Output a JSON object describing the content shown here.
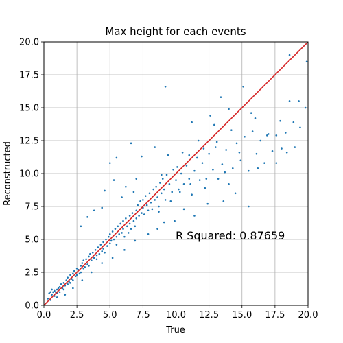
{
  "chart_data": {
    "type": "scatter",
    "title": "Max height for each events",
    "xlabel": "True",
    "ylabel": "Reconstructed",
    "xlim": [
      0,
      20
    ],
    "ylim": [
      0,
      20
    ],
    "xticks": [
      "0.0",
      "2.5",
      "5.0",
      "7.5",
      "10.0",
      "12.5",
      "15.0",
      "17.5",
      "20.0"
    ],
    "yticks": [
      "0.0",
      "2.5",
      "5.0",
      "7.5",
      "10.0",
      "12.5",
      "15.0",
      "17.5",
      "20.0"
    ],
    "grid": true,
    "annotation": "R Squared: 0.87659",
    "colors": {
      "points": "#1f77b4",
      "identity_line": "#d62728",
      "grid": "#b0b0b0"
    },
    "identity_line": {
      "x": [
        0,
        20
      ],
      "y": [
        0,
        20
      ]
    },
    "series": [
      {
        "type": "scatter",
        "points": [
          [
            0.3,
            0.5
          ],
          [
            0.4,
            0.9
          ],
          [
            0.5,
            1.0
          ],
          [
            0.6,
            0.8
          ],
          [
            0.6,
            1.2
          ],
          [
            0.7,
            1.0
          ],
          [
            0.8,
            1.1
          ],
          [
            0.8,
            0.7
          ],
          [
            0.9,
            1.0
          ],
          [
            1.0,
            1.2
          ],
          [
            1.0,
            0.9
          ],
          [
            1.1,
            1.3
          ],
          [
            1.2,
            1.4
          ],
          [
            1.2,
            1.0
          ],
          [
            1.3,
            1.6
          ],
          [
            1.4,
            1.3
          ],
          [
            1.5,
            1.7
          ],
          [
            1.5,
            1.2
          ],
          [
            1.6,
            1.5
          ],
          [
            1.7,
            1.9
          ],
          [
            1.8,
            1.6
          ],
          [
            1.8,
            2.1
          ],
          [
            1.9,
            1.8
          ],
          [
            2.0,
            2.3
          ],
          [
            2.0,
            1.7
          ],
          [
            2.1,
            2.0
          ],
          [
            2.2,
            2.4
          ],
          [
            2.2,
            1.9
          ],
          [
            2.3,
            2.6
          ],
          [
            2.4,
            2.2
          ],
          [
            2.5,
            2.8
          ],
          [
            2.5,
            2.3
          ],
          [
            2.6,
            2.7
          ],
          [
            2.7,
            2.4
          ],
          [
            2.8,
            3.0
          ],
          [
            2.8,
            2.5
          ],
          [
            2.9,
            3.2
          ],
          [
            3.0,
            2.8
          ],
          [
            3.0,
            3.4
          ],
          [
            3.1,
            2.9
          ],
          [
            3.2,
            3.5
          ],
          [
            3.3,
            3.1
          ],
          [
            3.4,
            3.7
          ],
          [
            3.4,
            3.0
          ],
          [
            3.5,
            3.9
          ],
          [
            3.6,
            3.4
          ],
          [
            3.7,
            4.0
          ],
          [
            3.8,
            3.6
          ],
          [
            3.9,
            4.2
          ],
          [
            4.0,
            3.8
          ],
          [
            4.0,
            3.5
          ],
          [
            4.1,
            4.4
          ],
          [
            4.2,
            3.9
          ],
          [
            4.3,
            4.6
          ],
          [
            4.4,
            4.1
          ],
          [
            4.5,
            4.8
          ],
          [
            4.5,
            4.3
          ],
          [
            4.6,
            4.0
          ],
          [
            4.7,
            5.0
          ],
          [
            4.8,
            4.5
          ],
          [
            4.9,
            5.2
          ],
          [
            5.0,
            4.7
          ],
          [
            5.0,
            5.4
          ],
          [
            5.1,
            4.9
          ],
          [
            5.2,
            5.6
          ],
          [
            5.3,
            5.0
          ],
          [
            5.4,
            5.8
          ],
          [
            5.5,
            5.2
          ],
          [
            5.5,
            4.6
          ],
          [
            5.6,
            6.0
          ],
          [
            5.7,
            5.4
          ],
          [
            5.8,
            6.2
          ],
          [
            5.9,
            5.5
          ],
          [
            6.0,
            6.4
          ],
          [
            6.0,
            5.8
          ],
          [
            6.1,
            5.2
          ],
          [
            6.2,
            6.6
          ],
          [
            6.3,
            6.0
          ],
          [
            6.4,
            5.5
          ],
          [
            6.5,
            6.8
          ],
          [
            6.5,
            6.2
          ],
          [
            6.6,
            5.8
          ],
          [
            6.7,
            7.0
          ],
          [
            6.8,
            6.4
          ],
          [
            6.9,
            6.0
          ],
          [
            7.0,
            7.2
          ],
          [
            7.0,
            6.6
          ],
          [
            7.1,
            7.6
          ],
          [
            7.2,
            6.8
          ],
          [
            7.3,
            7.9
          ],
          [
            7.4,
            7.0
          ],
          [
            7.5,
            8.0
          ],
          [
            7.5,
            7.4
          ],
          [
            7.6,
            6.9
          ],
          [
            7.7,
            8.3
          ],
          [
            7.8,
            7.6
          ],
          [
            7.9,
            7.2
          ],
          [
            8.0,
            8.5
          ],
          [
            8.1,
            7.8
          ],
          [
            8.2,
            7.3
          ],
          [
            8.3,
            8.8
          ],
          [
            8.4,
            8.0
          ],
          [
            8.5,
            9.0
          ],
          [
            8.6,
            8.2
          ],
          [
            8.7,
            7.5
          ],
          [
            8.8,
            9.3
          ],
          [
            8.9,
            8.5
          ],
          [
            9.0,
            9.6
          ],
          [
            9.1,
            8.8
          ],
          [
            9.2,
            8.0
          ],
          [
            9.3,
            9.9
          ],
          [
            9.5,
            9.2
          ],
          [
            9.7,
            8.6
          ],
          [
            9.8,
            10.3
          ],
          [
            10.0,
            9.5
          ],
          [
            10.2,
            8.8
          ],
          [
            10.4,
            10.0
          ],
          [
            10.6,
            9.2
          ],
          [
            10.8,
            10.6
          ],
          [
            11.0,
            9.6
          ],
          [
            11.2,
            8.4
          ],
          [
            11.4,
            10.2
          ],
          [
            11.6,
            11.2
          ],
          [
            11.8,
            9.5
          ],
          [
            12.0,
            10.8
          ],
          [
            12.2,
            8.9
          ],
          [
            12.5,
            11.5
          ],
          [
            12.8,
            10.3
          ],
          [
            13.0,
            12.0
          ],
          [
            13.2,
            9.6
          ],
          [
            13.5,
            10.7
          ],
          [
            13.8,
            11.8
          ],
          [
            14.0,
            9.2
          ],
          [
            14.3,
            10.4
          ],
          [
            14.6,
            12.3
          ],
          [
            14.9,
            11.0
          ],
          [
            15.2,
            12.8
          ],
          [
            15.5,
            10.2
          ],
          [
            15.8,
            13.2
          ],
          [
            16.1,
            11.5
          ],
          [
            16.4,
            12.5
          ],
          [
            16.7,
            10.8
          ],
          [
            17.0,
            13.0
          ],
          [
            17.3,
            11.7
          ],
          [
            17.6,
            12.9
          ],
          [
            18.0,
            11.9
          ],
          [
            18.3,
            13.1
          ],
          [
            18.6,
            15.5
          ],
          [
            19.0,
            12.0
          ],
          [
            19.4,
            13.5
          ],
          [
            19.8,
            15.0
          ],
          [
            19.9,
            18.5
          ],
          [
            18.6,
            19.0
          ],
          [
            9.2,
            16.6
          ],
          [
            13.4,
            15.8
          ],
          [
            15.1,
            16.6
          ],
          [
            12.6,
            14.4
          ],
          [
            11.2,
            13.9
          ],
          [
            14.0,
            14.9
          ],
          [
            16.0,
            14.2
          ],
          [
            5.0,
            10.8
          ],
          [
            5.5,
            11.2
          ],
          [
            6.6,
            12.3
          ],
          [
            8.4,
            12.0
          ],
          [
            9.4,
            11.4
          ],
          [
            7.4,
            11.3
          ],
          [
            4.6,
            8.7
          ],
          [
            5.3,
            9.5
          ],
          [
            6.2,
            9.0
          ],
          [
            7.0,
            9.6
          ],
          [
            3.3,
            6.7
          ],
          [
            3.8,
            7.2
          ],
          [
            2.8,
            6.0
          ],
          [
            4.4,
            7.4
          ],
          [
            5.9,
            8.2
          ],
          [
            6.8,
            8.6
          ],
          [
            8.9,
            9.9
          ],
          [
            10.5,
            11.6
          ],
          [
            11.7,
            12.5
          ],
          [
            12.9,
            13.7
          ],
          [
            9.9,
            6.4
          ],
          [
            10.6,
            7.3
          ],
          [
            11.4,
            6.8
          ],
          [
            12.4,
            7.7
          ],
          [
            13.6,
            7.9
          ],
          [
            14.5,
            8.5
          ],
          [
            15.5,
            7.5
          ],
          [
            8.6,
            5.8
          ],
          [
            9.1,
            6.3
          ],
          [
            7.9,
            5.4
          ],
          [
            6.9,
            4.9
          ],
          [
            6.1,
            4.2
          ],
          [
            5.2,
            3.6
          ],
          [
            4.4,
            3.2
          ],
          [
            3.6,
            2.5
          ],
          [
            2.9,
            1.9
          ],
          [
            2.2,
            1.3
          ],
          [
            1.6,
            0.8
          ],
          [
            1.0,
            0.6
          ],
          [
            0.5,
            0.4
          ],
          [
            17.9,
            14.0
          ],
          [
            18.9,
            13.9
          ],
          [
            19.3,
            15.5
          ],
          [
            16.9,
            12.9
          ],
          [
            15.7,
            14.6
          ],
          [
            14.2,
            13.3
          ],
          [
            13.1,
            12.4
          ],
          [
            12.1,
            11.9
          ],
          [
            11.0,
            11.4
          ],
          [
            10.1,
            10.5
          ],
          [
            16.2,
            10.4
          ],
          [
            17.6,
            10.8
          ],
          [
            18.4,
            11.6
          ],
          [
            14.8,
            11.6
          ],
          [
            13.7,
            10.1
          ],
          [
            12.3,
            9.6
          ],
          [
            11.1,
            9.2
          ],
          [
            10.3,
            8.6
          ],
          [
            9.6,
            7.9
          ],
          [
            8.7,
            7.1
          ]
        ]
      }
    ]
  }
}
